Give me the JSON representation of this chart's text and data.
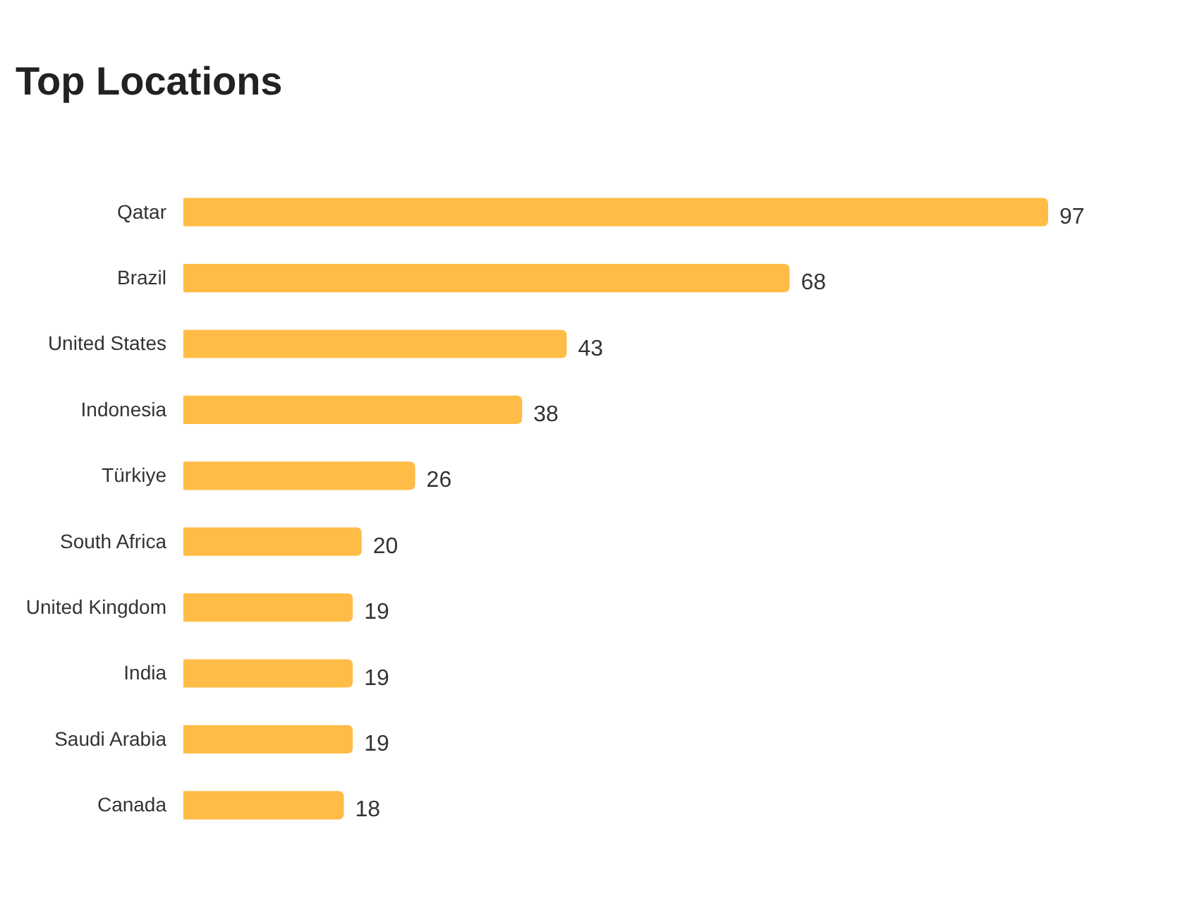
{
  "chart_data": {
    "type": "bar",
    "orientation": "horizontal",
    "title": "Top Locations",
    "categories": [
      "Qatar",
      "Brazil",
      "United States",
      "Indonesia",
      "Türkiye",
      "South Africa",
      "United Kingdom",
      "India",
      "Saudi Arabia",
      "Canada"
    ],
    "values": [
      97,
      68,
      43,
      38,
      26,
      20,
      19,
      19,
      19,
      18
    ],
    "color": "#ffbc47",
    "data_labels": true
  }
}
